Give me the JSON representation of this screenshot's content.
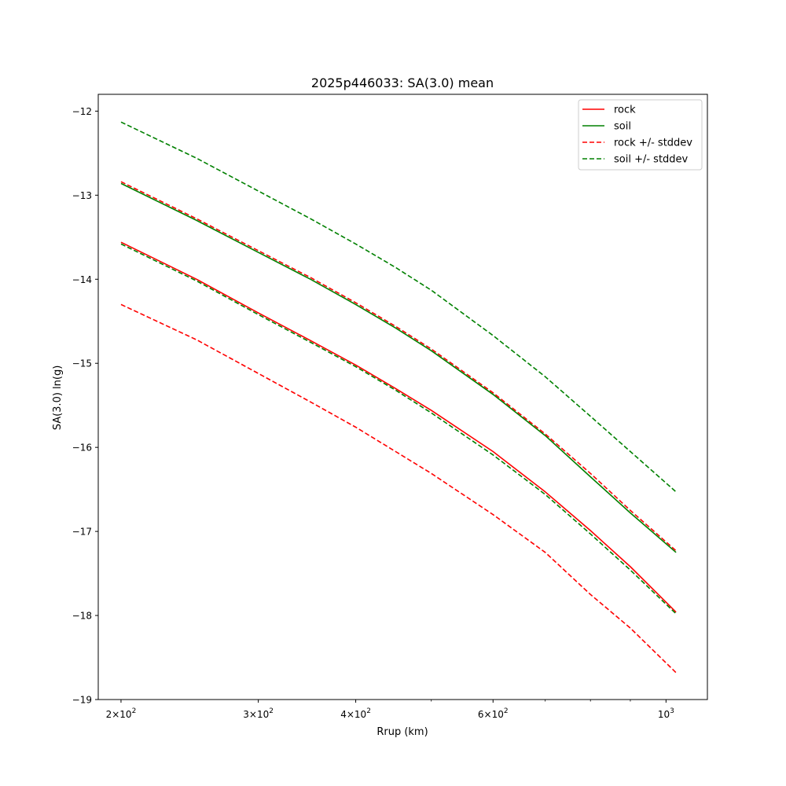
{
  "chart_data": {
    "type": "line",
    "title": "2025p446033: SA(3.0) mean",
    "xlabel": "Rrup (km)",
    "ylabel": "SA(3.0) ln(g)",
    "xscale": "log",
    "xlim": [
      187,
      1130
    ],
    "ylim": [
      -19,
      -11.8
    ],
    "grid": false,
    "legend_position": "top-right",
    "x_major_ticks": [
      {
        "value": 200,
        "mantissa": "2",
        "base": "10",
        "exp": "2"
      },
      {
        "value": 300,
        "mantissa": "3",
        "base": "10",
        "exp": "2"
      },
      {
        "value": 400,
        "mantissa": "4",
        "base": "10",
        "exp": "2"
      },
      {
        "value": 600,
        "mantissa": "6",
        "base": "10",
        "exp": "2"
      },
      {
        "value": 1000,
        "mantissa": "",
        "base": "10",
        "exp": "3"
      }
    ],
    "x_minor_ticks": [
      500,
      700,
      800,
      900
    ],
    "y_ticks": [
      {
        "value": -12,
        "label": "−12"
      },
      {
        "value": -13,
        "label": "−13"
      },
      {
        "value": -14,
        "label": "−14"
      },
      {
        "value": -15,
        "label": "−15"
      },
      {
        "value": -16,
        "label": "−16"
      },
      {
        "value": -17,
        "label": "−17"
      },
      {
        "value": -18,
        "label": "−18"
      },
      {
        "value": -19,
        "label": "−19"
      }
    ],
    "x": [
      200,
      250,
      300,
      350,
      400,
      450,
      500,
      600,
      700,
      800,
      900,
      1030
    ],
    "series": [
      {
        "name": "rock",
        "color": "#ff0000",
        "dash": "solid",
        "legend": true,
        "values": [
          -13.56,
          -14.0,
          -14.4,
          -14.73,
          -15.02,
          -15.3,
          -15.56,
          -16.05,
          -16.53,
          -16.99,
          -17.42,
          -17.96
        ]
      },
      {
        "name": "soil",
        "color": "#008000",
        "dash": "solid",
        "legend": true,
        "values": [
          -12.86,
          -13.3,
          -13.68,
          -14.0,
          -14.3,
          -14.58,
          -14.85,
          -15.37,
          -15.86,
          -16.35,
          -16.78,
          -17.25
        ]
      },
      {
        "name": "rock +/- stddev",
        "color": "#ff0000",
        "dash": "dashed",
        "legend": true,
        "values": [
          -12.84,
          -13.28,
          -13.66,
          -13.98,
          -14.28,
          -14.56,
          -14.83,
          -15.35,
          -15.84,
          -16.31,
          -16.75,
          -17.23
        ]
      },
      {
        "name": "rock +/- stddev",
        "color": "#ff0000",
        "dash": "dashed",
        "legend": false,
        "values": [
          -14.3,
          -14.72,
          -15.12,
          -15.46,
          -15.76,
          -16.05,
          -16.31,
          -16.8,
          -17.25,
          -17.75,
          -18.15,
          -18.68
        ]
      },
      {
        "name": "soil +/- stddev",
        "color": "#008000",
        "dash": "dashed",
        "legend": true,
        "values": [
          -12.13,
          -12.56,
          -12.95,
          -13.28,
          -13.58,
          -13.86,
          -14.13,
          -14.67,
          -15.16,
          -15.63,
          -16.05,
          -16.53
        ]
      },
      {
        "name": "soil +/- stddev",
        "color": "#008000",
        "dash": "dashed",
        "legend": false,
        "values": [
          -13.58,
          -14.02,
          -14.42,
          -14.75,
          -15.04,
          -15.32,
          -15.59,
          -16.09,
          -16.56,
          -17.03,
          -17.46,
          -17.98
        ]
      }
    ]
  }
}
